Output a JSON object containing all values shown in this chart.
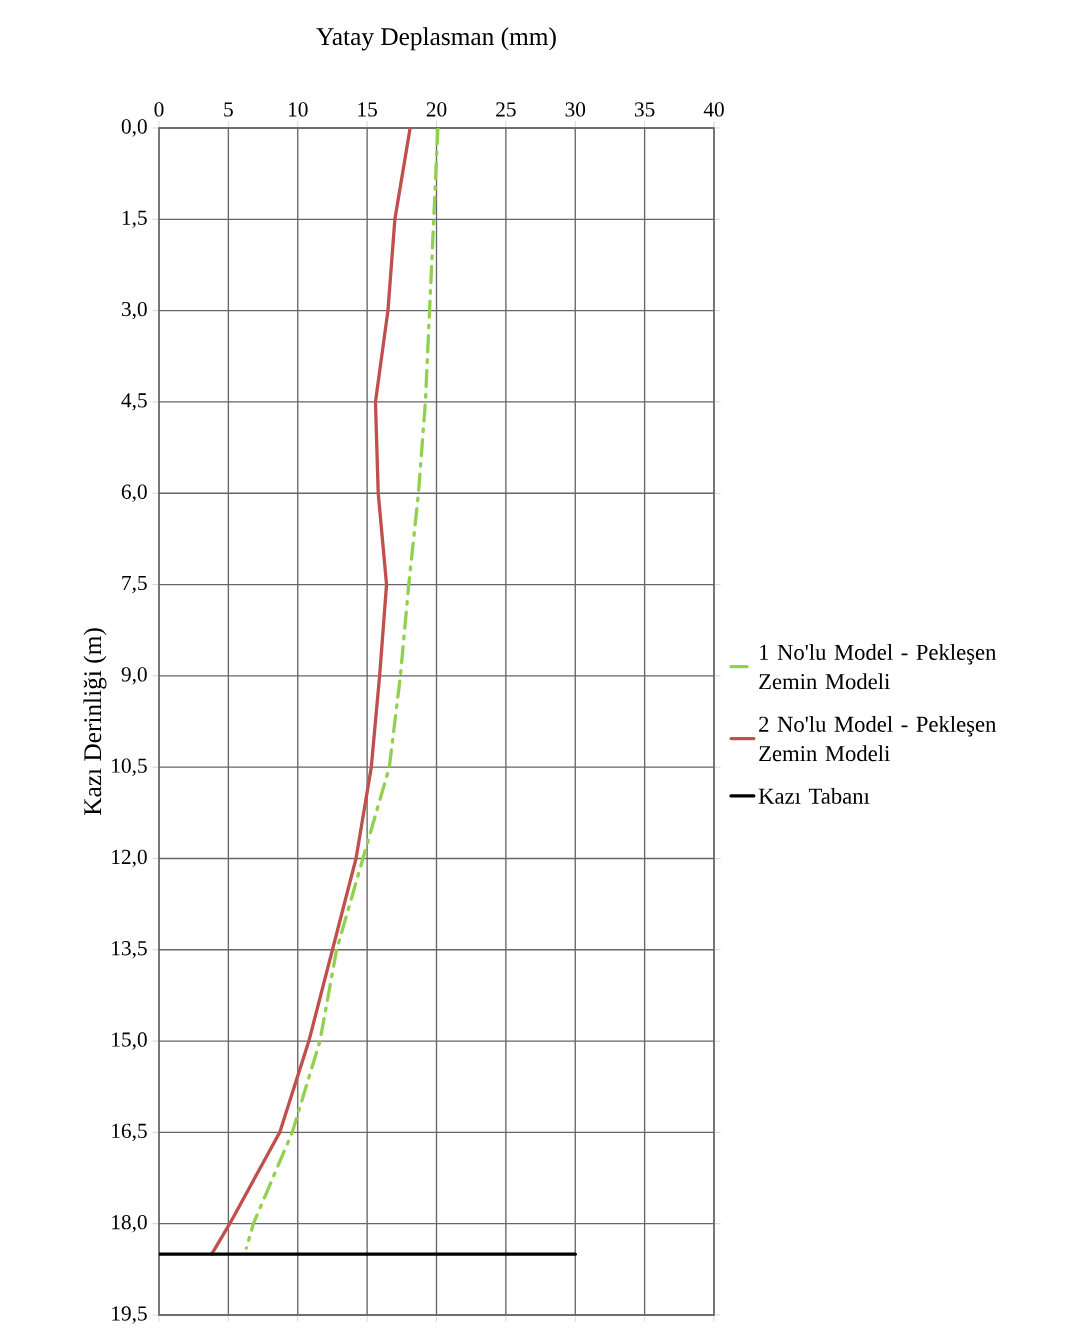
{
  "chart_data": {
    "type": "line",
    "xlabel": "Yatay Deplasman (mm)",
    "ylabel": "Kazı Derinliği (m)",
    "xlim": [
      0,
      40
    ],
    "xticks": [
      0,
      5,
      10,
      15,
      20,
      25,
      30,
      35,
      40
    ],
    "ylim": [
      19.5,
      0
    ],
    "yticks": [
      {
        "value": 0,
        "label": "0,0"
      },
      {
        "value": 1.5,
        "label": "1,5"
      },
      {
        "value": 3,
        "label": "3,0"
      },
      {
        "value": 4.5,
        "label": "4,5"
      },
      {
        "value": 6,
        "label": "6,0"
      },
      {
        "value": 7.5,
        "label": "7,5"
      },
      {
        "value": 9,
        "label": "9,0"
      },
      {
        "value": 10.5,
        "label": "10,5"
      },
      {
        "value": 12,
        "label": "12,0"
      },
      {
        "value": 13.5,
        "label": "13,5"
      },
      {
        "value": 15,
        "label": "15,0"
      },
      {
        "value": 16.5,
        "label": "16,5"
      },
      {
        "value": 18,
        "label": "18,0"
      },
      {
        "value": 19.5,
        "label": "19,5"
      }
    ],
    "grid": true,
    "legend": "right",
    "series": [
      {
        "name": "1 No'lu Model - Pekleşen Zemin Modeli",
        "color": "#92d050",
        "line_style": "dashdot",
        "x": [
          20.1,
          19.8,
          19.5,
          19.2,
          18.7,
          18.0,
          17.4,
          16.6,
          14.7,
          12.8,
          11.6,
          9.6,
          6.8,
          6.3
        ],
        "values": [
          0,
          1.5,
          3,
          4.5,
          6,
          7.5,
          9,
          10.5,
          12,
          13.5,
          15,
          16.5,
          18,
          18.4
        ]
      },
      {
        "name": "2 No'lu Model - Pekleşen Zemin Modeli",
        "color": "#c0504d",
        "line_style": "solid",
        "x": [
          18.1,
          17.0,
          16.5,
          15.6,
          15.8,
          16.4,
          15.9,
          15.3,
          14.2,
          12.5,
          10.8,
          8.7,
          5.1,
          3.8
        ],
        "values": [
          0,
          1.5,
          3,
          4.5,
          6,
          7.5,
          9,
          10.5,
          12,
          13.5,
          15,
          16.5,
          18,
          18.5
        ]
      },
      {
        "name": "Kazı Tabanı",
        "color": "#000000",
        "line_style": "solid",
        "x": [
          0,
          30
        ],
        "values": [
          18.5,
          18.5
        ]
      }
    ]
  }
}
